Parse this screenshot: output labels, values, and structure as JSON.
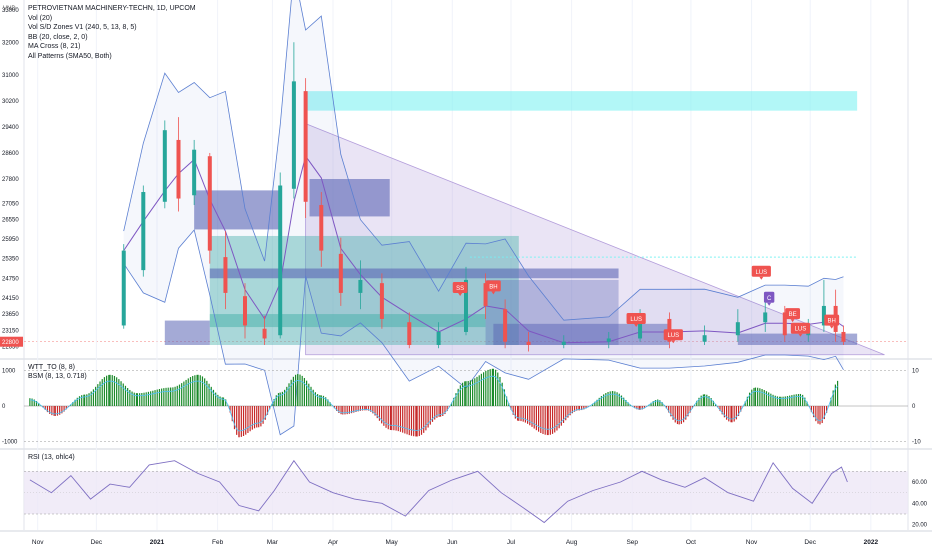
{
  "header": {
    "currency": "VND",
    "title": "PETROVIETNAM MACHINERY-TECHN, 1D, UPCOM",
    "indicators": [
      "Vol (20)",
      "Vol S/D Zones V1 (240, 5, 13, 8, 5)",
      "BB (20, close, 2, 0)",
      "MA Cross (8, 21)",
      "All Patterns (SMA50, Both)"
    ]
  },
  "colors": {
    "up": "#26a69a",
    "down": "#ef5350",
    "bb": "#5b7fd1",
    "zone_blue": "#5a64b4",
    "zone_teal": "#4db6ac",
    "zone_cyan": "#7ff2f2",
    "triangle": "#b39ddb",
    "osc_green": "#1b8a2a",
    "osc_red": "#c62828",
    "rsi_line": "#7e6fc2",
    "rsi_band": "#ede7f6",
    "badge": "#ef5350",
    "badge_purple": "#7e57c2"
  },
  "chart_data": [
    {
      "type": "candlestick",
      "title": "PETROVIETNAM MACHINERY-TECHN, 1D, UPCOM",
      "y_axis_unit": "VND",
      "y_ticks": [
        33000,
        32000,
        31000,
        30200,
        29400,
        28600,
        27800,
        27050,
        26550,
        25950,
        25350,
        24750,
        24150,
        23650,
        23150,
        22650
      ],
      "last_price": 22800,
      "x_ticks": [
        "Nov",
        "Dec",
        "2021",
        "Feb",
        "Mar",
        "Apr",
        "May",
        "Jun",
        "Jul",
        "Aug",
        "Sep",
        "Oct",
        "Nov",
        "Dec",
        "2022"
      ],
      "x_range": [
        "2020-10-25",
        "2022-01-20"
      ],
      "ylim": [
        22300,
        33300
      ],
      "candles": [
        {
          "date": "2020-12-15",
          "o": 23300,
          "c": 25600,
          "h": 25800,
          "l": 23200
        },
        {
          "date": "2020-12-25",
          "o": 25000,
          "c": 27400,
          "h": 27600,
          "l": 24800
        },
        {
          "date": "2021-01-05",
          "o": 27100,
          "c": 29300,
          "h": 29600,
          "l": 26900
        },
        {
          "date": "2021-01-12",
          "o": 29000,
          "c": 27200,
          "h": 29700,
          "l": 26800
        },
        {
          "date": "2021-01-20",
          "o": 27300,
          "c": 28700,
          "h": 29000,
          "l": 27000
        },
        {
          "date": "2021-01-28",
          "o": 28500,
          "c": 25600,
          "h": 28600,
          "l": 25200
        },
        {
          "date": "2021-02-05",
          "o": 25400,
          "c": 24300,
          "h": 26200,
          "l": 23800
        },
        {
          "date": "2021-02-15",
          "o": 24200,
          "c": 23300,
          "h": 24600,
          "l": 22900
        },
        {
          "date": "2021-02-25",
          "o": 23200,
          "c": 22900,
          "h": 23600,
          "l": 22700
        },
        {
          "date": "2021-03-05",
          "o": 23000,
          "c": 27600,
          "h": 28000,
          "l": 22900
        },
        {
          "date": "2021-03-12",
          "o": 27500,
          "c": 30800,
          "h": 32000,
          "l": 27200
        },
        {
          "date": "2021-03-18",
          "o": 30500,
          "c": 27100,
          "h": 30900,
          "l": 26600
        },
        {
          "date": "2021-03-26",
          "o": 27000,
          "c": 25600,
          "h": 27400,
          "l": 25100
        },
        {
          "date": "2021-04-05",
          "o": 25500,
          "c": 24300,
          "h": 26000,
          "l": 23900
        },
        {
          "date": "2021-04-15",
          "o": 24300,
          "c": 24700,
          "h": 25300,
          "l": 23800
        },
        {
          "date": "2021-04-26",
          "o": 24600,
          "c": 23500,
          "h": 24900,
          "l": 23200
        },
        {
          "date": "2021-05-10",
          "o": 23400,
          "c": 22700,
          "h": 23700,
          "l": 22600
        },
        {
          "date": "2021-05-25",
          "o": 22700,
          "c": 23100,
          "h": 23400,
          "l": 22600
        },
        {
          "date": "2021-06-08",
          "o": 23100,
          "c": 24700,
          "h": 25100,
          "l": 23000
        },
        {
          "date": "2021-06-18",
          "o": 24600,
          "c": 23900,
          "h": 24900,
          "l": 23500
        },
        {
          "date": "2021-06-28",
          "o": 23800,
          "c": 22800,
          "h": 24100,
          "l": 22600
        },
        {
          "date": "2021-07-10",
          "o": 22800,
          "c": 22700,
          "h": 23100,
          "l": 22500
        },
        {
          "date": "2021-07-28",
          "o": 22700,
          "c": 22800,
          "h": 23000,
          "l": 22600
        },
        {
          "date": "2021-08-20",
          "o": 22800,
          "c": 22900,
          "h": 23100,
          "l": 22600
        },
        {
          "date": "2021-09-05",
          "o": 22900,
          "c": 23600,
          "h": 23800,
          "l": 22800
        },
        {
          "date": "2021-09-20",
          "o": 23500,
          "c": 22800,
          "h": 23700,
          "l": 22600
        },
        {
          "date": "2021-10-08",
          "o": 22800,
          "c": 23000,
          "h": 23300,
          "l": 22700
        },
        {
          "date": "2021-10-25",
          "o": 23000,
          "c": 23400,
          "h": 23800,
          "l": 22800
        },
        {
          "date": "2021-11-08",
          "o": 23400,
          "c": 23700,
          "h": 24300,
          "l": 23100
        },
        {
          "date": "2021-11-18",
          "o": 23700,
          "c": 23000,
          "h": 23900,
          "l": 22800
        },
        {
          "date": "2021-11-30",
          "o": 23000,
          "c": 23300,
          "h": 23500,
          "l": 22800
        },
        {
          "date": "2021-12-08",
          "o": 23300,
          "c": 23900,
          "h": 24700,
          "l": 23100
        },
        {
          "date": "2021-12-14",
          "o": 23900,
          "c": 23100,
          "h": 24400,
          "l": 22800
        },
        {
          "date": "2021-12-18",
          "o": 23100,
          "c": 22800,
          "h": 23300,
          "l": 22700
        }
      ],
      "pattern_labels": [
        {
          "text": "SS",
          "date": "2021-06-05",
          "price": 24450
        },
        {
          "text": "BH",
          "date": "2021-06-22",
          "price": 24500
        },
        {
          "text": "LUS",
          "date": "2021-09-03",
          "price": 23500
        },
        {
          "text": "LUS",
          "date": "2021-09-22",
          "price": 23000
        },
        {
          "text": "LUS",
          "date": "2021-11-06",
          "price": 24950
        },
        {
          "text": "C",
          "date": "2021-11-10",
          "price": 24150
        },
        {
          "text": "BE",
          "date": "2021-11-22",
          "price": 23650
        },
        {
          "text": "LUS",
          "date": "2021-11-26",
          "price": 23200
        },
        {
          "text": "BH",
          "date": "2021-12-12",
          "price": 23450
        }
      ]
    },
    {
      "type": "histogram",
      "title": "WTT_TO (8, 8)",
      "secondary_title": "BSM (8, 13, 0.718)",
      "y_ticks_left": [
        "1000",
        "0",
        "-1000"
      ],
      "y_ticks_right": [
        "10",
        "0",
        "-10"
      ],
      "series": [
        {
          "name": "WTT_TO",
          "points": [
            [
              "2020-10-28",
              220
            ],
            [
              "2020-11-10",
              -280
            ],
            [
              "2020-11-25",
              320
            ],
            [
              "2020-12-08",
              880
            ],
            [
              "2020-12-22",
              360
            ],
            [
              "2021-01-08",
              520
            ],
            [
              "2021-01-22",
              880
            ],
            [
              "2021-02-04",
              240
            ],
            [
              "2021-02-12",
              -880
            ],
            [
              "2021-02-22",
              -600
            ],
            [
              "2021-03-05",
              380
            ],
            [
              "2021-03-14",
              900
            ],
            [
              "2021-03-26",
              300
            ],
            [
              "2021-04-06",
              -240
            ],
            [
              "2021-04-18",
              -120
            ],
            [
              "2021-05-01",
              -680
            ],
            [
              "2021-05-14",
              -860
            ],
            [
              "2021-05-26",
              -300
            ],
            [
              "2021-06-08",
              700
            ],
            [
              "2021-06-22",
              1050
            ],
            [
              "2021-07-05",
              -420
            ],
            [
              "2021-07-20",
              -820
            ],
            [
              "2021-08-05",
              -120
            ],
            [
              "2021-08-22",
              420
            ],
            [
              "2021-09-05",
              -110
            ],
            [
              "2021-09-14",
              180
            ],
            [
              "2021-09-25",
              -520
            ],
            [
              "2021-10-08",
              330
            ],
            [
              "2021-10-22",
              -460
            ],
            [
              "2021-11-03",
              520
            ],
            [
              "2021-11-16",
              260
            ],
            [
              "2021-11-26",
              340
            ],
            [
              "2021-12-06",
              -520
            ],
            [
              "2021-12-16",
              740
            ]
          ]
        }
      ]
    },
    {
      "type": "line",
      "title": "RSI (13, ohlc4)",
      "y_ticks": [
        60.0,
        40.0,
        20.0
      ],
      "ylim": [
        15,
        90
      ],
      "bands": [
        30,
        70
      ],
      "series": [
        {
          "name": "RSI",
          "points": [
            [
              "2020-10-28",
              62
            ],
            [
              "2020-11-08",
              50
            ],
            [
              "2020-11-18",
              66
            ],
            [
              "2020-11-28",
              44
            ],
            [
              "2020-12-08",
              58
            ],
            [
              "2020-12-18",
              55
            ],
            [
              "2020-12-28",
              76
            ],
            [
              "2021-01-10",
              80
            ],
            [
              "2021-01-22",
              68
            ],
            [
              "2021-02-02",
              60
            ],
            [
              "2021-02-12",
              38
            ],
            [
              "2021-02-22",
              33
            ],
            [
              "2021-03-02",
              52
            ],
            [
              "2021-03-12",
              80
            ],
            [
              "2021-03-20",
              60
            ],
            [
              "2021-04-01",
              50
            ],
            [
              "2021-04-12",
              44
            ],
            [
              "2021-04-26",
              40
            ],
            [
              "2021-05-08",
              28
            ],
            [
              "2021-05-20",
              52
            ],
            [
              "2021-06-01",
              62
            ],
            [
              "2021-06-14",
              70
            ],
            [
              "2021-06-26",
              50
            ],
            [
              "2021-07-08",
              35
            ],
            [
              "2021-07-18",
              22
            ],
            [
              "2021-07-30",
              42
            ],
            [
              "2021-08-12",
              52
            ],
            [
              "2021-08-26",
              60
            ],
            [
              "2021-09-06",
              70
            ],
            [
              "2021-09-16",
              62
            ],
            [
              "2021-09-28",
              55
            ],
            [
              "2021-10-08",
              64
            ],
            [
              "2021-10-20",
              50
            ],
            [
              "2021-11-02",
              42
            ],
            [
              "2021-11-12",
              78
            ],
            [
              "2021-11-22",
              54
            ],
            [
              "2021-12-02",
              40
            ],
            [
              "2021-12-12",
              68
            ],
            [
              "2021-12-17",
              74
            ],
            [
              "2021-12-20",
              60
            ]
          ]
        }
      ]
    }
  ]
}
